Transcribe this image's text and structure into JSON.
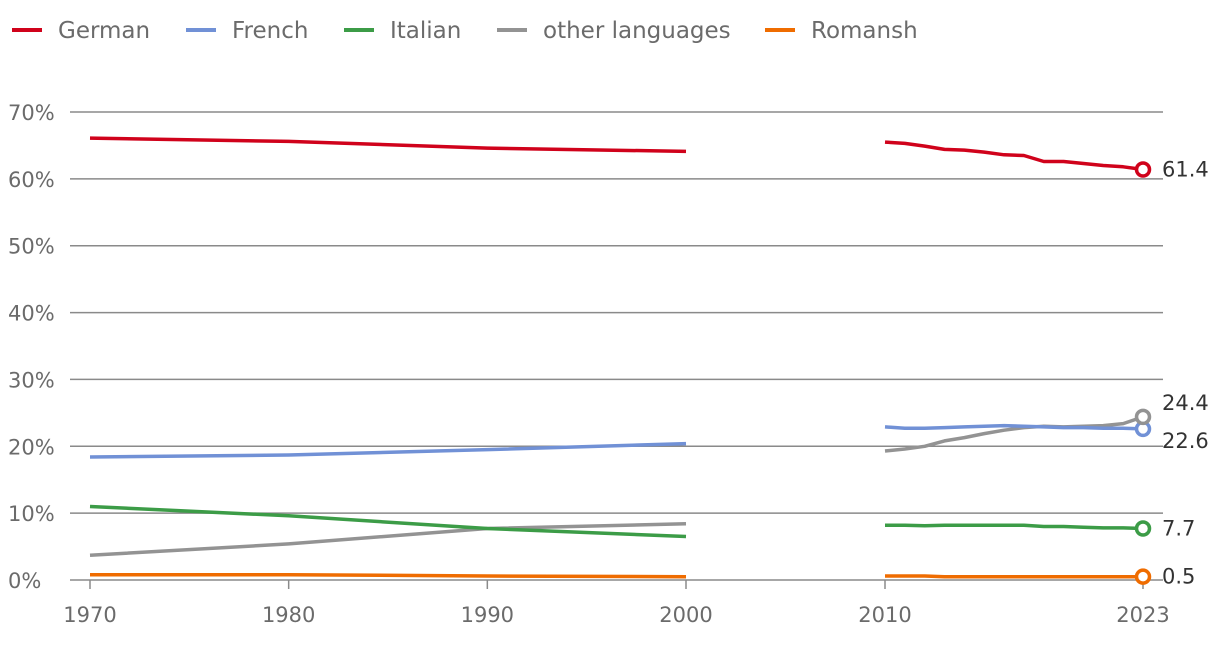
{
  "chart_data": {
    "type": "line",
    "title": "",
    "xlabel": "",
    "ylabel": "",
    "ylim": [
      0,
      70
    ],
    "y_ticks": [
      0,
      10,
      20,
      30,
      40,
      50,
      60,
      70
    ],
    "y_tick_labels": [
      "0%",
      "10%",
      "20%",
      "30%",
      "40%",
      "50%",
      "60%",
      "70%"
    ],
    "x_ticks": [
      1970,
      1980,
      1990,
      2000,
      2010,
      2023
    ],
    "x_tick_labels": [
      "1970",
      "1980",
      "1990",
      "2000",
      "2010",
      "2023"
    ],
    "x_axis_break": "between 2000 and 2010",
    "grid": true,
    "legend_position": "top-left",
    "series": [
      {
        "name": "German",
        "color": "#d0021b",
        "end_label": "61.4",
        "segments": [
          {
            "x": [
              1970,
              1980,
              1990,
              2000
            ],
            "y": [
              66.1,
              65.6,
              64.6,
              64.1
            ]
          },
          {
            "x": [
              2010,
              2011,
              2012,
              2013,
              2014,
              2015,
              2016,
              2017,
              2018,
              2019,
              2020,
              2021,
              2022,
              2023
            ],
            "y": [
              65.5,
              65.3,
              64.9,
              64.4,
              64.3,
              64.0,
              63.6,
              63.5,
              62.6,
              62.6,
              62.3,
              62.0,
              61.8,
              61.4
            ]
          }
        ]
      },
      {
        "name": "French",
        "color": "#7191d6",
        "end_label": "22.6",
        "segments": [
          {
            "x": [
              1970,
              1980,
              1990,
              2000
            ],
            "y": [
              18.4,
              18.7,
              19.5,
              20.4
            ]
          },
          {
            "x": [
              2010,
              2011,
              2012,
              2013,
              2014,
              2015,
              2016,
              2017,
              2018,
              2019,
              2020,
              2021,
              2022,
              2023
            ],
            "y": [
              22.9,
              22.7,
              22.7,
              22.8,
              22.9,
              23.0,
              23.1,
              23.0,
              22.9,
              22.8,
              22.8,
              22.7,
              22.7,
              22.6
            ]
          }
        ]
      },
      {
        "name": "Italian",
        "color": "#3c9c47",
        "end_label": "7.7",
        "segments": [
          {
            "x": [
              1970,
              1980,
              1990,
              2000
            ],
            "y": [
              11.0,
              9.6,
              7.7,
              6.5
            ]
          },
          {
            "x": [
              2010,
              2011,
              2012,
              2013,
              2014,
              2015,
              2016,
              2017,
              2018,
              2019,
              2020,
              2021,
              2022,
              2023
            ],
            "y": [
              8.2,
              8.2,
              8.1,
              8.2,
              8.2,
              8.2,
              8.2,
              8.2,
              8.0,
              8.0,
              7.9,
              7.8,
              7.8,
              7.7
            ]
          }
        ]
      },
      {
        "name": "other languages",
        "color": "#939393",
        "end_label": "24.4",
        "segments": [
          {
            "x": [
              1970,
              1980,
              1990,
              2000
            ],
            "y": [
              3.7,
              5.4,
              7.7,
              8.4
            ]
          },
          {
            "x": [
              2010,
              2011,
              2012,
              2013,
              2014,
              2015,
              2016,
              2017,
              2018,
              2019,
              2020,
              2021,
              2022,
              2023
            ],
            "y": [
              19.3,
              19.6,
              20.0,
              20.8,
              21.3,
              21.9,
              22.4,
              22.8,
              23.0,
              22.9,
              23.0,
              23.1,
              23.4,
              24.4
            ]
          }
        ]
      },
      {
        "name": "Romansh",
        "color": "#ef6c00",
        "end_label": "0.5",
        "segments": [
          {
            "x": [
              1970,
              1980,
              1990,
              2000
            ],
            "y": [
              0.8,
              0.8,
              0.6,
              0.5
            ]
          },
          {
            "x": [
              2010,
              2011,
              2012,
              2013,
              2014,
              2015,
              2016,
              2017,
              2018,
              2019,
              2020,
              2021,
              2022,
              2023
            ],
            "y": [
              0.6,
              0.6,
              0.6,
              0.5,
              0.5,
              0.5,
              0.5,
              0.5,
              0.5,
              0.5,
              0.5,
              0.5,
              0.5,
              0.5
            ]
          }
        ]
      }
    ]
  }
}
